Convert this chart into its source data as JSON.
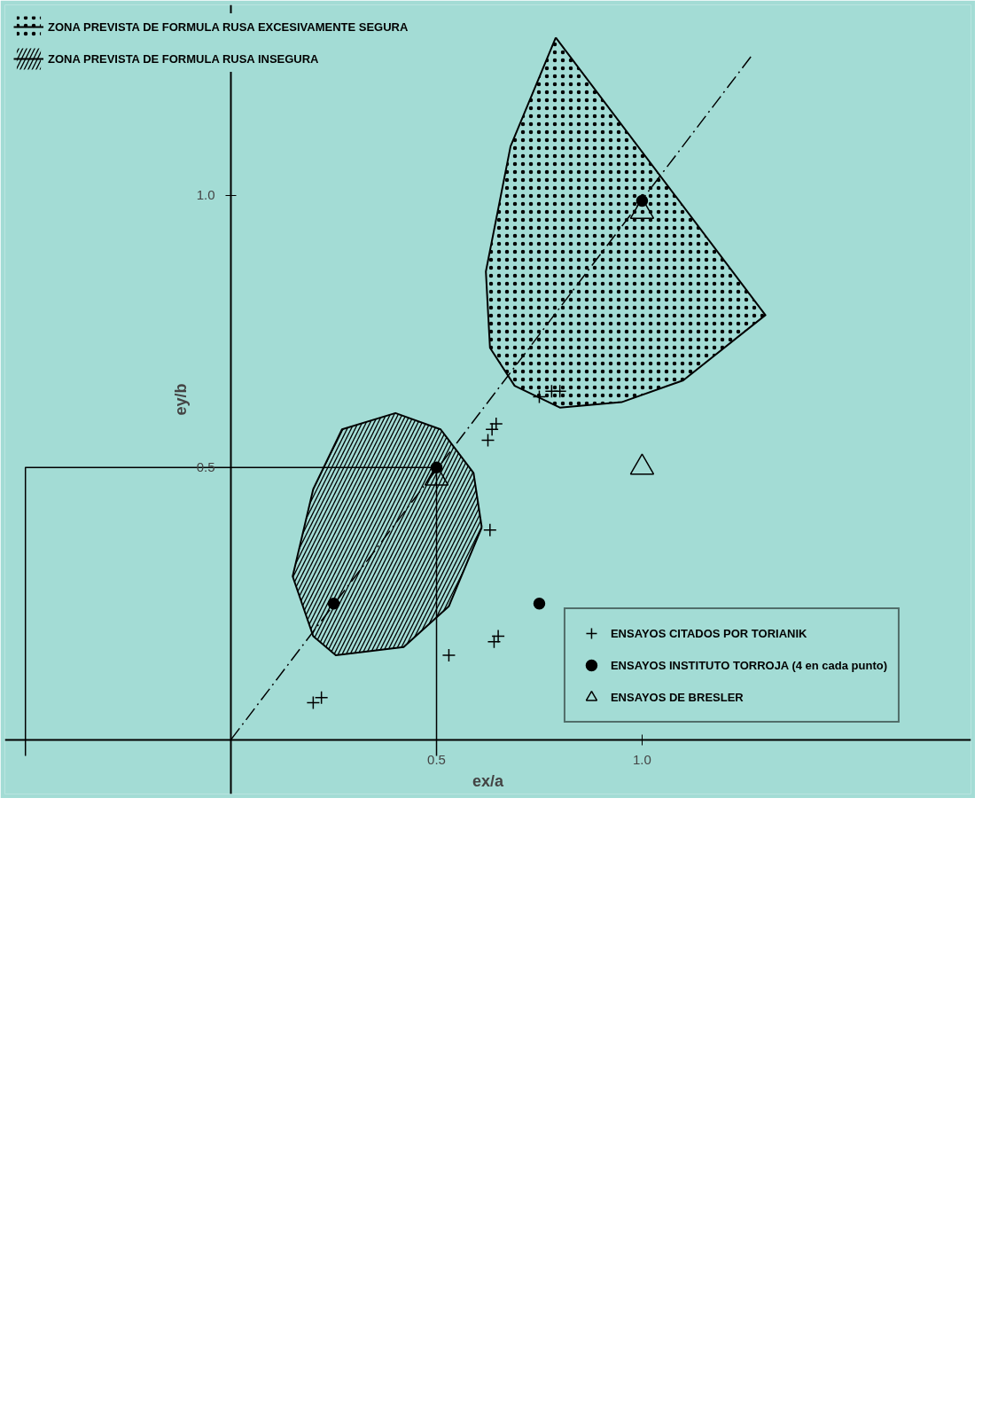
{
  "chart_data": {
    "type": "scatter",
    "xlabel": "ex/a",
    "ylabel": "ey/b",
    "xlim": [
      -0.55,
      1.8
    ],
    "ylim": [
      -0.1,
      1.35
    ],
    "xticks": [
      {
        "value": 0.5,
        "label": "0.5"
      },
      {
        "value": 1.0,
        "label": "1.0"
      }
    ],
    "yticks": [
      {
        "value": 0.5,
        "label": "0.5"
      },
      {
        "value": 1.0,
        "label": "1.0"
      }
    ],
    "grid": false,
    "legend": "top left",
    "series": [
      {
        "name": "ZONA PREVISTA DE FORMULA RUSA EXCESIVAMENTE SEGURA",
        "type": "area",
        "color": "#000000",
        "x": [
          0.79,
          0.68,
          0.62,
          0.63,
          0.69,
          0.8,
          0.95,
          1.1,
          1.3
        ],
        "values": [
          1.29,
          1.09,
          0.86,
          0.72,
          0.65,
          0.61,
          0.62,
          0.66,
          0.78
        ]
      },
      {
        "name": "ZONA PREVISTA DE FORMULA RUSA INSEGURA",
        "type": "area",
        "color": "#000000",
        "x": [
          0.61,
          0.53,
          0.42,
          0.255,
          0.2,
          0.15,
          0.2,
          0.27,
          0.4,
          0.51,
          0.59
        ],
        "values": [
          0.39,
          0.245,
          0.17,
          0.155,
          0.19,
          0.3,
          0.46,
          0.57,
          0.6,
          0.57,
          0.49
        ]
      },
      {
        "type": "line",
        "line_style": "dashed",
        "color": "#000000",
        "x": [
          0,
          1.27
        ],
        "values": [
          0,
          1.26
        ]
      },
      {
        "type": "line",
        "line_style": "solid",
        "color": "#000000",
        "x": [
          0.5,
          0.5,
          -0.5,
          -0.5
        ],
        "values": [
          -0.03,
          0.5,
          0.5,
          -0.03
        ]
      },
      {
        "name": "ENSAYOS CITADOS POR TORIANIK",
        "marker": "cross",
        "color": "#000000",
        "x": [
          0.8,
          0.78,
          0.75,
          0.645,
          0.635,
          0.625,
          0.63,
          0.65,
          0.64,
          0.53,
          0.22,
          0.2
        ],
        "values": [
          0.64,
          0.64,
          0.63,
          0.58,
          0.57,
          0.55,
          0.385,
          0.19,
          0.18,
          0.155,
          0.077,
          0.068
        ]
      },
      {
        "name": "ENSAYOS INSTITUTO TORROJA (4 en cada punto)",
        "marker": "circle",
        "color": "#000000",
        "x": [
          0.5,
          1.0,
          0.75,
          0.25
        ],
        "values": [
          0.5,
          0.99,
          0.25,
          0.25
        ]
      },
      {
        "name": "ENSAYOS DE BRESLER",
        "marker": "triangle",
        "color": "#000000",
        "x": [
          0.5,
          1.0,
          1.0
        ],
        "values": [
          0.48,
          0.97,
          0.5
        ]
      }
    ]
  }
}
